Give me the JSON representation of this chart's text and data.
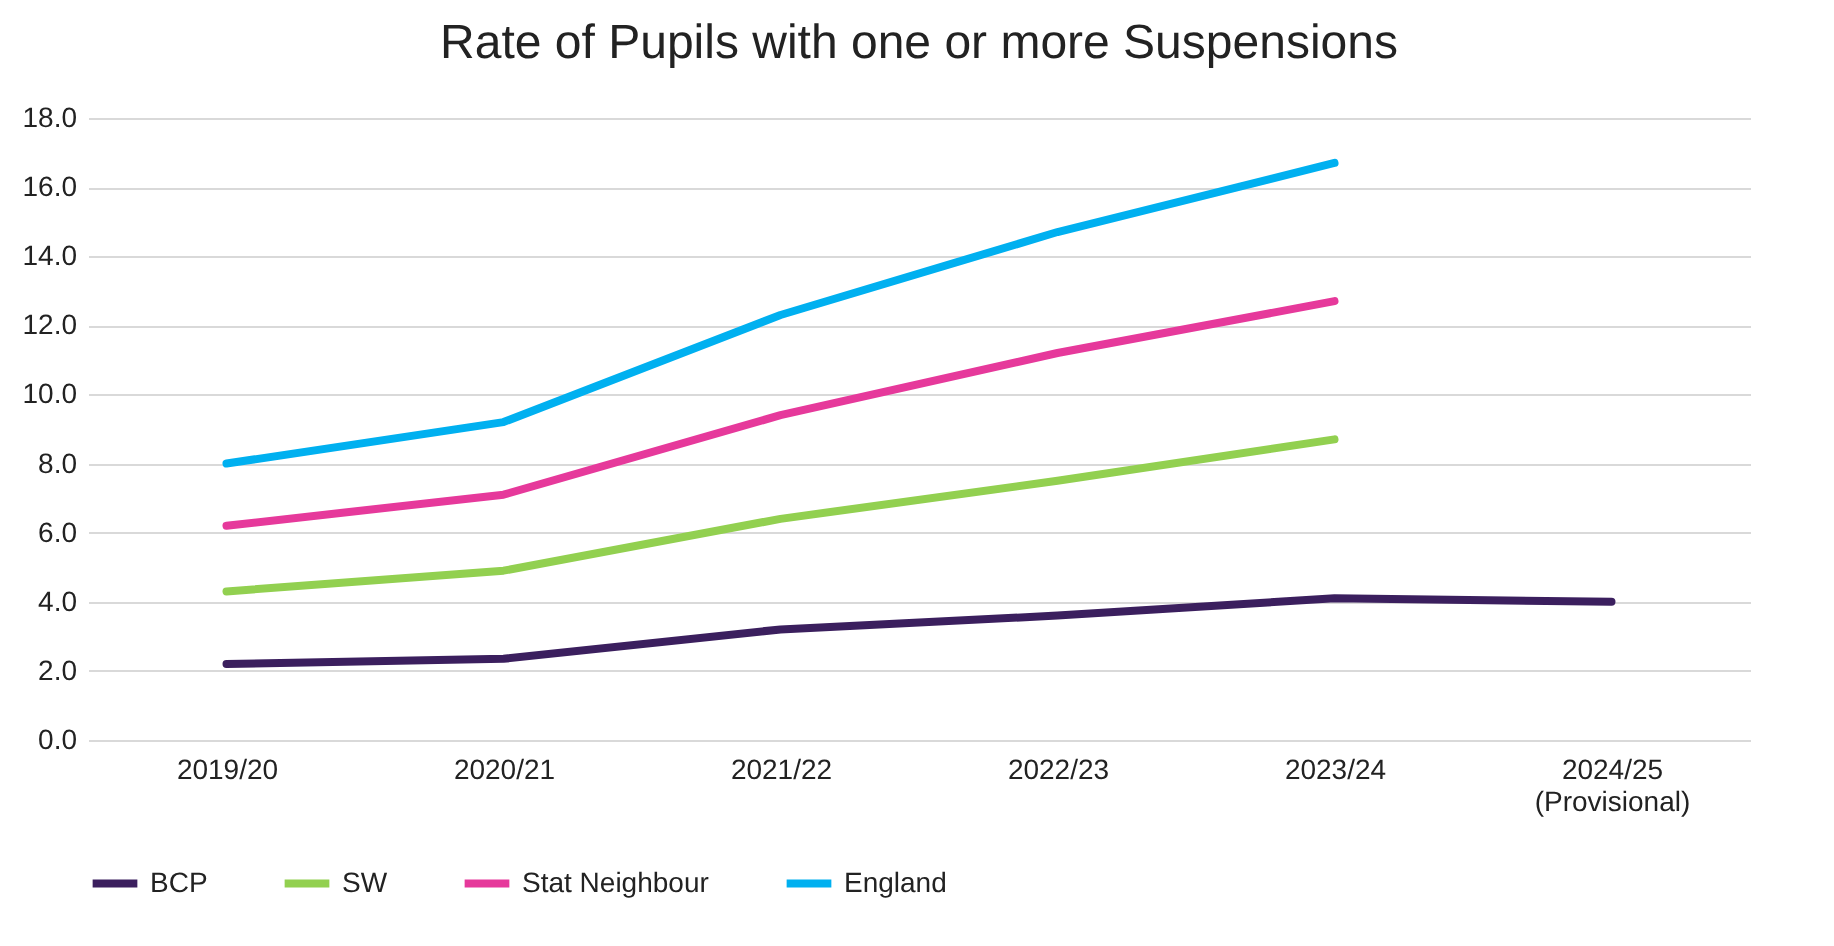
{
  "chart_data": {
    "type": "line",
    "title": "Rate of Pupils with one or more Suspensions",
    "categories": [
      "2019/20",
      "2020/21",
      "2021/22",
      "2022/23",
      "2023/24",
      "2024/25 (Provisional)"
    ],
    "series": [
      {
        "name": "BCP",
        "color": "#3b1f5e",
        "values": [
          2.2,
          2.35,
          3.2,
          3.6,
          4.1,
          4.0
        ]
      },
      {
        "name": "SW",
        "color": "#92d050",
        "values": [
          4.3,
          4.9,
          6.4,
          7.5,
          8.7,
          null
        ]
      },
      {
        "name": "Stat Neighbour",
        "color": "#e6399b",
        "values": [
          6.2,
          7.1,
          9.4,
          11.2,
          12.7,
          null
        ]
      },
      {
        "name": "England",
        "color": "#00b0f0",
        "values": [
          8.0,
          9.2,
          12.3,
          14.7,
          16.7,
          null
        ]
      }
    ],
    "ylim": [
      0,
      18
    ],
    "yticks": [
      {
        "value": 0,
        "label": "0.0"
      },
      {
        "value": 2,
        "label": "2.0"
      },
      {
        "value": 4,
        "label": "4.0"
      },
      {
        "value": 6,
        "label": "6.0"
      },
      {
        "value": 8,
        "label": "8.0"
      },
      {
        "value": 10,
        "label": "10.0"
      },
      {
        "value": 12,
        "label": "12.0"
      },
      {
        "value": 14,
        "label": "14.0"
      },
      {
        "value": 16,
        "label": "16.0"
      },
      {
        "value": 18,
        "label": "18.0"
      }
    ],
    "grid": "y",
    "legend": "bottom",
    "marker": "none",
    "line_style": "solid"
  }
}
